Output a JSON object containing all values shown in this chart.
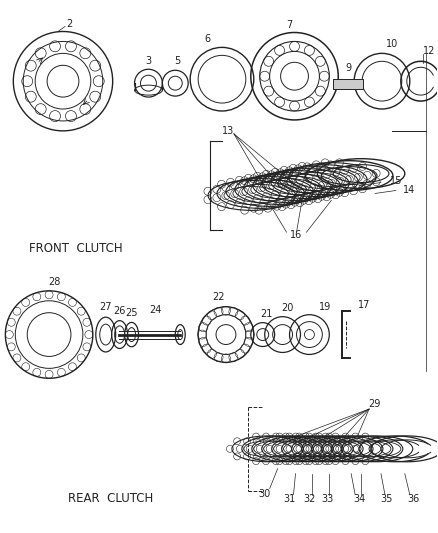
{
  "bg_color": "#ffffff",
  "lc": "#222222",
  "front_clutch_label": "FRONT  CLUTCH",
  "rear_clutch_label": "REAR  CLUTCH",
  "figsize": [
    4.38,
    5.33
  ],
  "dpi": 100
}
